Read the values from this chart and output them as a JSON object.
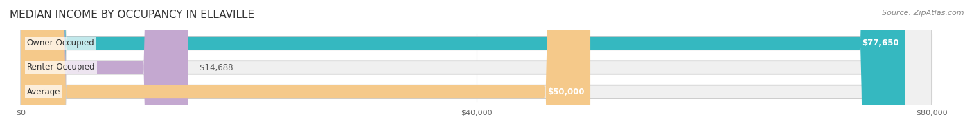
{
  "title": "MEDIAN INCOME BY OCCUPANCY IN ELLAVILLE",
  "source": "Source: ZipAtlas.com",
  "categories": [
    "Owner-Occupied",
    "Renter-Occupied",
    "Average"
  ],
  "values": [
    77650,
    14688,
    50000
  ],
  "bar_colors": [
    "#35b8c0",
    "#c4a8d0",
    "#f5c98a"
  ],
  "bar_bg_color": "#f0f0f0",
  "labels": [
    "$77,650",
    "$14,688",
    "$50,000"
  ],
  "label_positions": [
    "inside_right",
    "outside_right",
    "inside_middle"
  ],
  "xmax": 80000,
  "xticks": [
    0,
    40000,
    80000
  ],
  "xticklabels": [
    "$0",
    "$40,000",
    "$80,000"
  ],
  "title_fontsize": 11,
  "bar_label_fontsize": 8.5,
  "tick_fontsize": 8,
  "source_fontsize": 8,
  "bar_height": 0.55,
  "bg_color": "#ffffff",
  "text_color": "#333333"
}
